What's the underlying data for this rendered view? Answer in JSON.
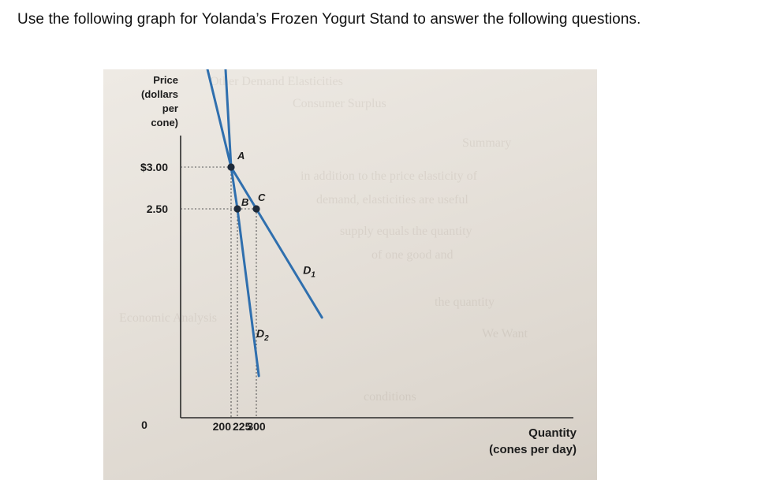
{
  "instruction": "Use the following graph for Yolanda’s Frozen Yogurt Stand to answer the following questions.",
  "chart_data": {
    "type": "line",
    "title": "",
    "ylabel_lines": [
      "Price",
      "(dollars",
      "per",
      "cone)"
    ],
    "xlabel_lines": [
      "Quantity",
      "(cones per day)"
    ],
    "origin_label": "0",
    "y_ticks": [
      {
        "value": 3.0,
        "label": "$3.00"
      },
      {
        "value": 2.5,
        "label": "2.50"
      }
    ],
    "x_ticks": [
      {
        "value": 200,
        "label": "200"
      },
      {
        "value": 225,
        "label": "225"
      },
      {
        "value": 300,
        "label": "300"
      }
    ],
    "series": [
      {
        "name": "D1",
        "points": [
          [
            80,
            4.5
          ],
          [
            200,
            3.0
          ],
          [
            300,
            2.5
          ],
          [
            560,
            1.2
          ]
        ]
      },
      {
        "name": "D2",
        "points": [
          [
            170,
            4.6
          ],
          [
            200,
            3.0
          ],
          [
            225,
            2.5
          ],
          [
            310,
            0.5
          ]
        ]
      }
    ],
    "points": [
      {
        "label": "A",
        "x": 200,
        "y": 3.0
      },
      {
        "label": "B",
        "x": 225,
        "y": 2.5
      },
      {
        "label": "C",
        "x": 300,
        "y": 2.5
      }
    ],
    "curve_labels": [
      {
        "series": "D1",
        "text": "D",
        "sub": "1"
      },
      {
        "series": "D2",
        "text": "D",
        "sub": "2"
      }
    ],
    "colors": {
      "curve": "#2f6fae",
      "point": "#1e2a3a",
      "axis": "#2a2a2a",
      "guide": "#555555"
    }
  }
}
